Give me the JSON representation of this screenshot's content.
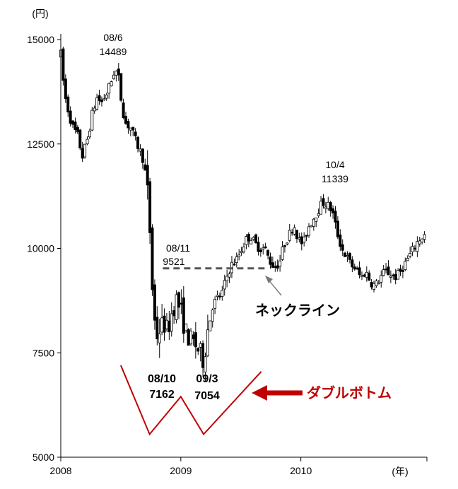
{
  "chart_data": {
    "type": "candlestick",
    "unit_label": "(円)",
    "x_unit_label": "(年)",
    "y_ticks": [
      15000,
      12500,
      10000,
      7500,
      5000
    ],
    "ylim": [
      5000,
      15000
    ],
    "x_ticks": [
      2008,
      2009,
      2010
    ],
    "xlim": [
      2008.0,
      2011.05
    ],
    "colors": {
      "ink": "#000000",
      "accent": "#c00000",
      "neckline": "#555555",
      "arrow": "#777777"
    },
    "annotations": {
      "peak1": {
        "date": "08/6",
        "value": "14489"
      },
      "peak2": {
        "date": "10/4",
        "value": "11339"
      },
      "neck": {
        "date": "08/11",
        "value": "9521"
      },
      "low1": {
        "date": "08/10",
        "value": "7162"
      },
      "low2": {
        "date": "09/3",
        "value": "7054"
      },
      "neckline_label": "ネックライン",
      "pattern_label": "ダブルボトム"
    },
    "neckline": {
      "x": [
        2008.85,
        2009.7
      ],
      "y": 9521
    },
    "pattern_shape": [
      {
        "x": 2008.5,
        "y": 7200
      },
      {
        "x": 2008.74,
        "y": 5550
      },
      {
        "x": 2009.0,
        "y": 6450
      },
      {
        "x": 2009.19,
        "y": 5550
      },
      {
        "x": 2009.67,
        "y": 7050
      }
    ],
    "anchors": [
      [
        2008.0,
        14650
      ],
      [
        2008.03,
        13700
      ],
      [
        2008.07,
        13200
      ],
      [
        2008.1,
        12900
      ],
      [
        2008.14,
        12700
      ],
      [
        2008.18,
        12200
      ],
      [
        2008.22,
        12600
      ],
      [
        2008.26,
        13200
      ],
      [
        2008.3,
        13600
      ],
      [
        2008.34,
        13500
      ],
      [
        2008.38,
        13700
      ],
      [
        2008.42,
        14000
      ],
      [
        2008.45,
        14300
      ],
      [
        2008.48,
        14100
      ],
      [
        2008.51,
        13400
      ],
      [
        2008.54,
        13000
      ],
      [
        2008.58,
        12900
      ],
      [
        2008.62,
        12600
      ],
      [
        2008.65,
        12400
      ],
      [
        2008.68,
        12200
      ],
      [
        2008.71,
        11700
      ],
      [
        2008.73,
        11100
      ],
      [
        2008.75,
        10000
      ],
      [
        2008.77,
        8500
      ],
      [
        2008.8,
        7900
      ],
      [
        2008.83,
        8100
      ],
      [
        2008.86,
        8200
      ],
      [
        2008.89,
        8000
      ],
      [
        2008.92,
        8400
      ],
      [
        2008.96,
        8800
      ],
      [
        2009.0,
        8500
      ],
      [
        2009.04,
        8000
      ],
      [
        2009.08,
        7800
      ],
      [
        2009.12,
        7700
      ],
      [
        2009.16,
        7500
      ],
      [
        2009.19,
        7300
      ],
      [
        2009.22,
        8000
      ],
      [
        2009.26,
        8600
      ],
      [
        2009.3,
        8800
      ],
      [
        2009.34,
        8900
      ],
      [
        2009.38,
        9300
      ],
      [
        2009.42,
        9600
      ],
      [
        2009.46,
        9700
      ],
      [
        2009.5,
        9950
      ],
      [
        2009.54,
        10200
      ],
      [
        2009.58,
        10300
      ],
      [
        2009.62,
        10100
      ],
      [
        2009.66,
        10000
      ],
      [
        2009.7,
        10000
      ],
      [
        2009.74,
        9700
      ],
      [
        2009.78,
        9550
      ],
      [
        2009.82,
        9650
      ],
      [
        2009.86,
        10100
      ],
      [
        2009.9,
        10300
      ],
      [
        2009.94,
        10600
      ],
      [
        2009.98,
        10200
      ],
      [
        2010.02,
        10100
      ],
      [
        2010.06,
        10500
      ],
      [
        2010.1,
        10700
      ],
      [
        2010.14,
        10900
      ],
      [
        2010.18,
        11100
      ],
      [
        2010.22,
        11050
      ],
      [
        2010.26,
        10900
      ],
      [
        2010.3,
        10400
      ],
      [
        2010.34,
        10000
      ],
      [
        2010.38,
        9800
      ],
      [
        2010.42,
        9600
      ],
      [
        2010.46,
        9500
      ],
      [
        2010.5,
        9300
      ],
      [
        2010.54,
        9450
      ],
      [
        2010.58,
        9200
      ],
      [
        2010.62,
        9100
      ],
      [
        2010.66,
        9300
      ],
      [
        2010.7,
        9450
      ],
      [
        2010.74,
        9400
      ],
      [
        2010.78,
        9300
      ],
      [
        2010.82,
        9400
      ],
      [
        2010.86,
        9600
      ],
      [
        2010.9,
        9800
      ],
      [
        2010.94,
        10000
      ],
      [
        2010.98,
        10200
      ],
      [
        2011.02,
        10300
      ]
    ]
  }
}
